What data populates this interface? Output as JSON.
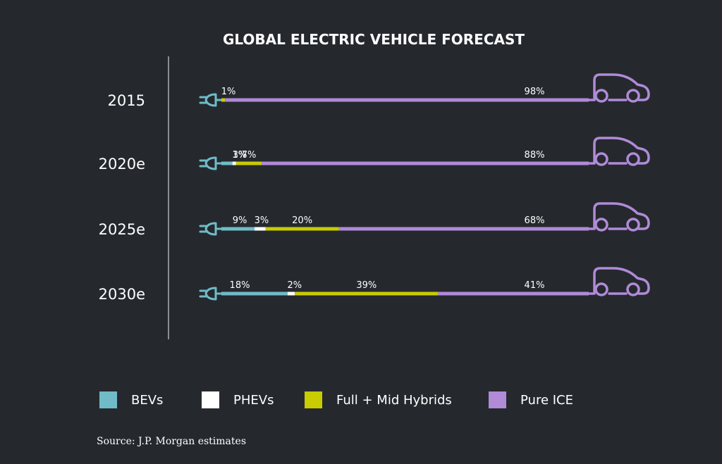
{
  "chart_data": {
    "type": "bar",
    "title": "GLOBAL ELECTRIC VEHICLE FORECAST",
    "categories": [
      "2015",
      "2020e",
      "2025e",
      "2030e"
    ],
    "series": [
      {
        "name": "BEVs",
        "color": "#6fbcc8",
        "values": [
          0,
          3,
          9,
          18
        ],
        "labels": [
          null,
          "3%",
          "9%",
          "18%"
        ]
      },
      {
        "name": "PHEVs",
        "color": "#ffffff",
        "values": [
          0,
          1,
          3,
          2
        ],
        "labels": [
          null,
          "1%",
          "3%",
          "2%"
        ]
      },
      {
        "name": "Full + Mid Hybrids",
        "color": "#c8cc00",
        "values": [
          1,
          7,
          20,
          39
        ],
        "labels": [
          "1%",
          "7%",
          "20%",
          "39%"
        ]
      },
      {
        "name": "Pure ICE",
        "color": "#b18ad8",
        "values": [
          98,
          88,
          68,
          41
        ],
        "labels": [
          "98%",
          "88%",
          "68%",
          "41%"
        ]
      }
    ],
    "stacked": true,
    "orientation": "horizontal",
    "legend_position": "bottom",
    "icons": [
      "plug-icon",
      "car-icon"
    ]
  },
  "source": "Source: J.P. Morgan estimates",
  "colors": {
    "background": "#25292e",
    "axis": "#8a8d90"
  }
}
